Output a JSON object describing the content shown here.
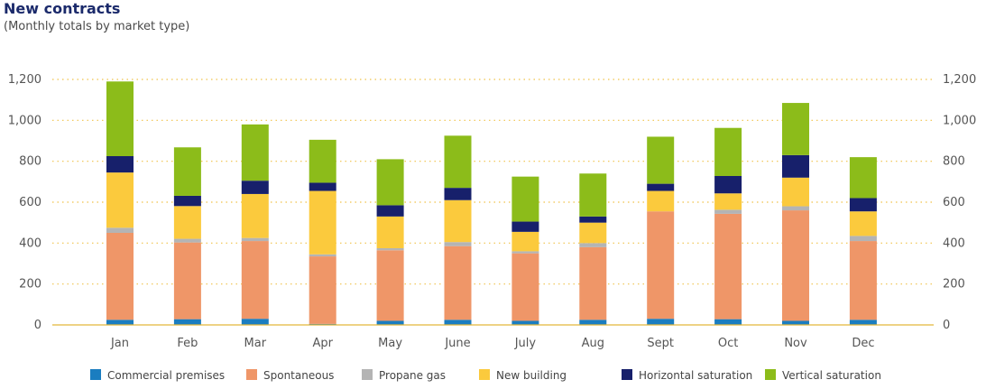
{
  "header": {
    "title": "New contracts",
    "subtitle": "(Monthly totals by market type)"
  },
  "chart_data": {
    "type": "bar",
    "stacked": true,
    "title": "New contracts",
    "subtitle": "(Monthly totals by market type)",
    "categories": [
      "Jan",
      "Feb",
      "Mar",
      "Apr",
      "May",
      "June",
      "July",
      "Aug",
      "Sept",
      "Oct",
      "Nov",
      "Dec"
    ],
    "ylim": [
      0,
      1200
    ],
    "yticks": [
      "0",
      "200",
      "400",
      "600",
      "800",
      "1,000",
      "1,200"
    ],
    "ytick_values": [
      0,
      200,
      400,
      600,
      800,
      1000,
      1200
    ],
    "grid": true,
    "legend_position": "bottom",
    "axes": "left and right",
    "series": [
      {
        "name": "Commercial premises",
        "color": "#1a7dc0",
        "values": [
          25,
          28,
          30,
          5,
          20,
          25,
          20,
          25,
          30,
          28,
          20,
          25
        ]
      },
      {
        "name": "Spontaneous",
        "color": "#ef9668",
        "values": [
          425,
          375,
          380,
          330,
          345,
          360,
          330,
          355,
          525,
          515,
          540,
          385
        ]
      },
      {
        "name": "Propane gas",
        "color": "#b4b4b4",
        "values": [
          25,
          18,
          15,
          10,
          10,
          20,
          10,
          20,
          0,
          20,
          20,
          25
        ]
      },
      {
        "name": "New building",
        "color": "#fbca3d",
        "values": [
          270,
          160,
          215,
          310,
          155,
          205,
          95,
          100,
          100,
          80,
          140,
          120
        ]
      },
      {
        "name": "Horizontal saturation",
        "color": "#17206b",
        "values": [
          80,
          50,
          65,
          40,
          55,
          60,
          50,
          30,
          35,
          85,
          110,
          65
        ]
      },
      {
        "name": "Vertical saturation",
        "color": "#8cbc1a",
        "values": [
          365,
          237,
          275,
          210,
          225,
          255,
          220,
          210,
          230,
          235,
          255,
          200
        ]
      }
    ]
  }
}
